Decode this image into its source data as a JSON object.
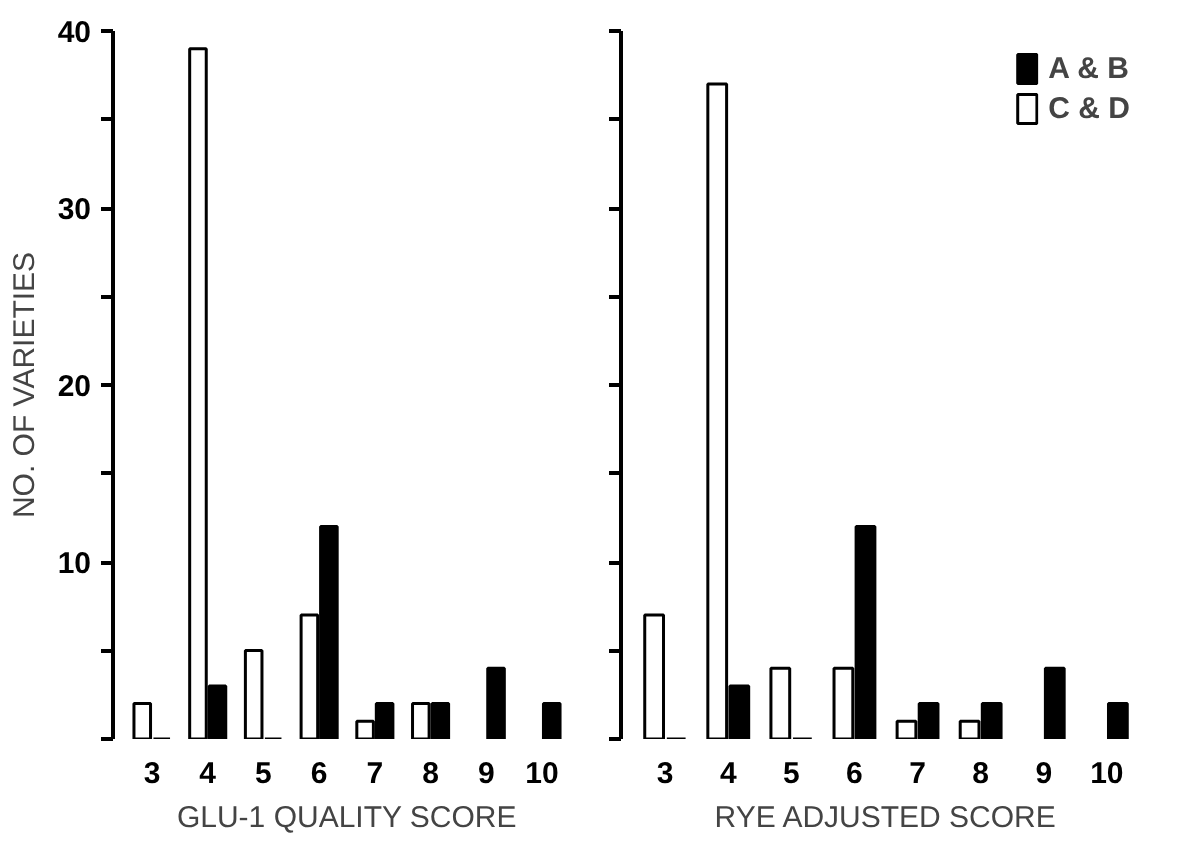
{
  "chart_data": [
    {
      "type": "bar",
      "xlabel": "GLU-1 QUALITY SCORE",
      "ylabel": "NO. OF VARIETIES",
      "categories": [
        "3",
        "4",
        "5",
        "6",
        "7",
        "8",
        "9",
        "10"
      ],
      "series": [
        {
          "color": "#ffffff",
          "values": [
            2,
            39,
            5,
            7,
            1,
            2,
            0,
            0
          ]
        },
        {
          "color": "#000000",
          "values": [
            0,
            3,
            0,
            12,
            2,
            2,
            4,
            2
          ]
        }
      ],
      "ylim": [
        0,
        40
      ],
      "yticks": [
        {
          "value": 0,
          "label": null
        },
        {
          "value": 5,
          "label": null
        },
        10,
        {
          "value": 15,
          "label": null
        },
        20,
        {
          "value": 25,
          "label": null
        },
        30,
        {
          "value": 35,
          "label": null
        },
        40
      ],
      "grid": false
    },
    {
      "type": "bar",
      "xlabel": "RYE ADJUSTED SCORE",
      "categories": [
        "3",
        "4",
        "5",
        "6",
        "7",
        "8",
        "9",
        "10"
      ],
      "series": [
        {
          "name": "C & D",
          "color": "#ffffff",
          "values": [
            7,
            37,
            4,
            4,
            1,
            1,
            0,
            0
          ]
        },
        {
          "name": "A & B",
          "color": "#000000",
          "values": [
            0,
            3,
            0,
            12,
            2,
            2,
            4,
            2
          ]
        }
      ],
      "ylim": [
        0,
        40
      ],
      "yticks": [
        {
          "value": 0,
          "label": null
        },
        {
          "value": 5,
          "label": null
        },
        {
          "value": 10,
          "label": null
        },
        {
          "value": 15,
          "label": null
        },
        {
          "value": 20,
          "label": null
        },
        {
          "value": 25,
          "label": null
        },
        {
          "value": 30,
          "label": null
        },
        {
          "value": 35,
          "label": null
        },
        {
          "value": 40,
          "label": null
        }
      ],
      "tick_labels": "x",
      "grid": false,
      "legend": "top right"
    }
  ]
}
